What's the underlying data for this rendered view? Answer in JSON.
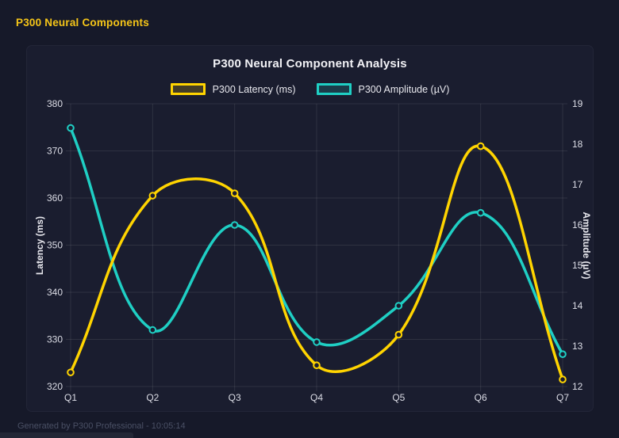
{
  "page": {
    "header": "P300 Neural Components",
    "footer": "Generated by P300 Professional - 10:05:14"
  },
  "colors": {
    "header_accent": "#f5c518",
    "latency_line": "#ffd400",
    "amplitude_line": "#1fcfc4",
    "panel_background": "#1a1d2f",
    "page_background": "#161929"
  },
  "chart_data": {
    "type": "line",
    "title": "P300 Neural Component Analysis",
    "categories": [
      "Q1",
      "Q2",
      "Q3",
      "Q4",
      "Q5",
      "Q6",
      "Q7"
    ],
    "series": [
      {
        "name": "P300 Latency (ms)",
        "axis": "left",
        "color": "#ffd400",
        "values": [
          323,
          360.5,
          361,
          324.5,
          331,
          371,
          321.5
        ]
      },
      {
        "name": "P300 Amplitude (µV)",
        "axis": "right",
        "color": "#1fcfc4",
        "values": [
          18.4,
          13.4,
          16.0,
          13.1,
          14.0,
          16.3,
          12.8
        ]
      }
    ],
    "left_axis": {
      "label": "Latency (ms)",
      "min": 320,
      "max": 380,
      "step": 10
    },
    "right_axis": {
      "label": "Amplitude (µV)",
      "min": 12,
      "max": 19,
      "step": 1
    },
    "grid": true,
    "legend_position": "top",
    "line_tension": 0.4,
    "curve": "spline"
  }
}
